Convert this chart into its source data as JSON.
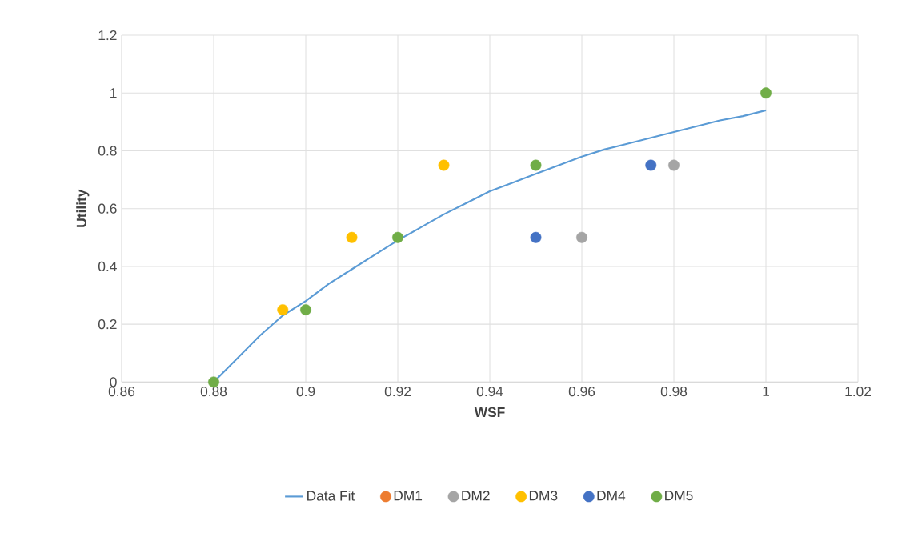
{
  "chart_data": {
    "type": "scatter",
    "xlabel": "WSF",
    "ylabel": "Utility",
    "xlim": [
      0.86,
      1.02
    ],
    "xticks": [
      0.86,
      0.88,
      0.9,
      0.92,
      0.94,
      0.96,
      0.98,
      1,
      1.02
    ],
    "ylim": [
      0,
      1.2
    ],
    "yticks": [
      0,
      0.2,
      0.4,
      0.6,
      0.8,
      1,
      1.2
    ],
    "grid": true,
    "legend": "bottom",
    "series": [
      {
        "name": "Data Fit",
        "type": "line",
        "marker": "none",
        "color": "#5b9bd5",
        "x": [
          0.88,
          0.885,
          0.89,
          0.895,
          0.9,
          0.905,
          0.91,
          0.915,
          0.92,
          0.925,
          0.93,
          0.935,
          0.94,
          0.945,
          0.95,
          0.955,
          0.96,
          0.965,
          0.97,
          0.975,
          0.98,
          0.985,
          0.99,
          0.995,
          1
        ],
        "values": [
          0,
          0.08,
          0.16,
          0.23,
          0.28,
          0.34,
          0.39,
          0.44,
          0.49,
          0.535,
          0.58,
          0.62,
          0.66,
          0.69,
          0.72,
          0.75,
          0.78,
          0.805,
          0.825,
          0.845,
          0.865,
          0.885,
          0.905,
          0.92,
          0.94
        ]
      },
      {
        "name": "DM1",
        "marker": "circle",
        "color": "#ed7d31"
      },
      {
        "name": "DM2",
        "marker": "circle",
        "color": "#a5a5a5",
        "x": [
          0.96,
          0.98
        ],
        "values": [
          0.5,
          0.75
        ]
      },
      {
        "name": "DM3",
        "marker": "circle",
        "color": "#ffc000",
        "x": [
          0.895,
          0.91,
          0.93
        ],
        "values": [
          0.25,
          0.5,
          0.75
        ]
      },
      {
        "name": "DM4",
        "marker": "circle",
        "color": "#4472c4",
        "x": [
          0.95,
          0.975
        ],
        "values": [
          0.5,
          0.75
        ]
      },
      {
        "name": "DM5",
        "marker": "circle",
        "color": "#70ad47",
        "x": [
          0.88,
          0.9,
          0.92,
          0.95,
          1
        ],
        "values": [
          0,
          0.25,
          0.5,
          0.75,
          1
        ]
      }
    ]
  }
}
